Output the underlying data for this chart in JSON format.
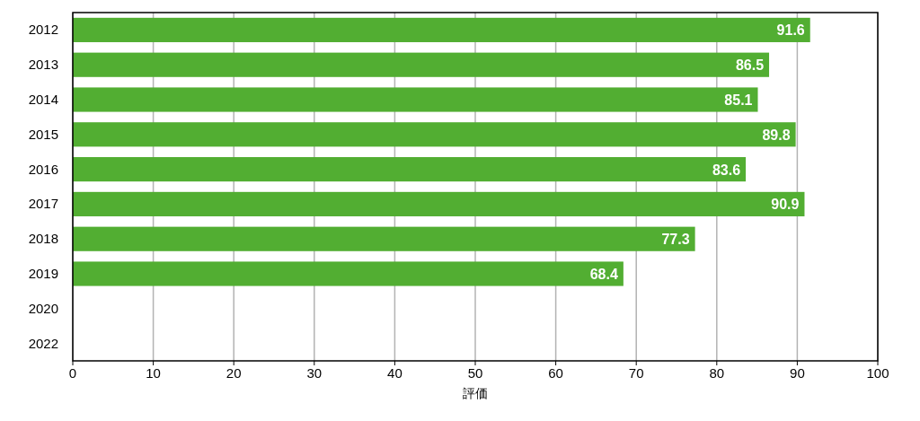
{
  "chart_data": {
    "type": "bar",
    "orientation": "horizontal",
    "categories": [
      "2012",
      "2013",
      "2014",
      "2015",
      "2016",
      "2017",
      "2018",
      "2019",
      "2020",
      "2022"
    ],
    "values": [
      91.6,
      86.5,
      85.1,
      89.8,
      83.6,
      90.9,
      77.3,
      68.4,
      null,
      null
    ],
    "color": "#52ae32",
    "xlim": [
      0,
      100
    ],
    "xticks": [
      0,
      10,
      20,
      30,
      40,
      50,
      60,
      70,
      80,
      90,
      100
    ],
    "xlabel": "評価",
    "grid": "x",
    "data_labels": true
  }
}
